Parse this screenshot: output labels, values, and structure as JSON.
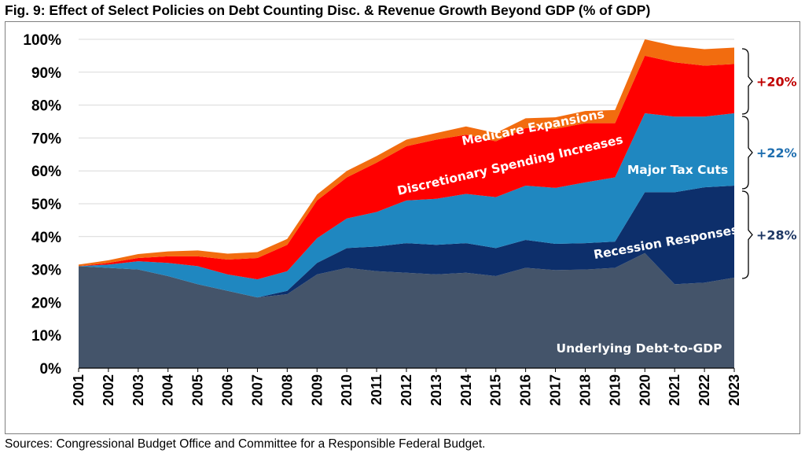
{
  "title": "Fig. 9: Effect of Select Policies on Debt Counting Disc. & Revenue Growth Beyond GDP (% of GDP)",
  "source": "Sources: Congressional Budget Office and Committee for a Responsible Federal Budget.",
  "chart_data": {
    "type": "area",
    "stacked": true,
    "categories": [
      "2001",
      "2002",
      "2003",
      "2004",
      "2005",
      "2006",
      "2007",
      "2008",
      "2009",
      "2010",
      "2011",
      "2012",
      "2013",
      "2014",
      "2015",
      "2016",
      "2017",
      "2018",
      "2019",
      "2020",
      "2021",
      "2022",
      "2023"
    ],
    "ylim": [
      0,
      100
    ],
    "y_ticks": [
      "0%",
      "10%",
      "20%",
      "30%",
      "40%",
      "50%",
      "60%",
      "70%",
      "80%",
      "90%",
      "100%"
    ],
    "grid": true,
    "series": [
      {
        "name": "Underlying Debt-to-GDP",
        "color": "#44546a",
        "values": [
          31,
          30.5,
          30,
          28,
          25.5,
          23.5,
          21.5,
          22.5,
          28.5,
          30.5,
          29.5,
          29,
          28.5,
          29,
          28,
          30.5,
          29.8,
          30,
          30.5,
          35,
          25.5,
          26,
          27.5
        ]
      },
      {
        "name": "Recession Responses",
        "color": "#0d2f6b",
        "values": [
          0,
          0,
          0,
          0,
          0,
          0,
          0,
          1,
          3.5,
          6,
          7.5,
          9,
          9,
          9,
          8.5,
          8.5,
          8,
          8,
          8,
          18.5,
          28,
          29,
          28
        ]
      },
      {
        "name": "Major Tax Cuts",
        "color": "#1f87c0",
        "values": [
          0,
          1,
          2.5,
          4,
          5.5,
          5,
          5.5,
          6,
          7.5,
          9,
          10.5,
          13,
          14,
          15,
          15.5,
          16.5,
          17,
          18.5,
          19.5,
          24,
          23,
          21.5,
          22
        ]
      },
      {
        "name": "Discretionary Spending Increases",
        "color": "#ff0000",
        "values": [
          0,
          0.5,
          1,
          2,
          3,
          4.5,
          6.5,
          8,
          11.5,
          12.5,
          15,
          16.5,
          18,
          18,
          17,
          17.5,
          18,
          18,
          16.5,
          17.5,
          16.5,
          15.5,
          15
        ]
      },
      {
        "name": "Medicare Expansions",
        "color": "#f26c0f",
        "values": [
          0.5,
          0.8,
          1.2,
          1.5,
          1.8,
          1.8,
          1.8,
          1.8,
          1.8,
          2,
          2,
          2,
          2,
          2.5,
          2.5,
          3,
          3.5,
          3.7,
          4,
          5,
          5,
          5,
          5
        ]
      }
    ],
    "annotations": [
      {
        "text": "+20%",
        "color": "#c00000"
      },
      {
        "text": "+22%",
        "color": "#1f6fb0"
      },
      {
        "text": "+28%",
        "color": "#1f3864"
      }
    ]
  }
}
